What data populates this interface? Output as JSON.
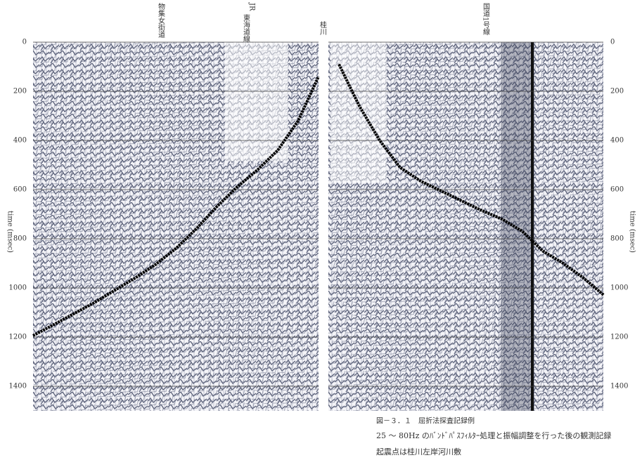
{
  "chart_data": {
    "type": "line",
    "caption": "図－３．１　屈折法探査記録例",
    "notes": [
      "25 ～ 80Hz のﾊﾞﾝﾄﾞﾊﾟｽﾌｨﾙﾀｰ処理と振幅調整を行った後の観測記録",
      "起震点は桂川左岸河川敷"
    ],
    "annotations": [
      "物集女街道",
      "JR",
      "東海道線",
      "桂川",
      "国道1号線"
    ],
    "y_label": "time (msec)",
    "categories": [
      null,
      null,
      null,
      null,
      null,
      null,
      null,
      null,
      null,
      null,
      null,
      null,
      null,
      null,
      null,
      null,
      null,
      null,
      null,
      null,
      null,
      null,
      null,
      null,
      null,
      null,
      null,
      null,
      null
    ],
    "series": [
      {
        "color": "#000000",
        "values": [
          1194,
          1150,
          1105,
          1060,
          1010,
          960,
          905,
          840,
          760,
          670,
          590,
          520,
          440,
          320,
          140,
          null,
          null,
          null,
          null,
          null,
          null,
          null,
          null,
          null,
          null,
          null,
          null,
          null,
          null
        ]
      },
      {
        "color": "#000000",
        "values": [
          null,
          null,
          null,
          null,
          null,
          null,
          null,
          null,
          null,
          null,
          null,
          null,
          null,
          null,
          null,
          90,
          260,
          400,
          510,
          565,
          605,
          645,
          685,
          720,
          770,
          850,
          900,
          960,
          1030
        ]
      }
    ],
    "ylim": [
      0,
      1500
    ],
    "yticks": [
      0,
      200,
      400,
      600,
      800,
      1000,
      1200,
      1400
    ],
    "y_inverted": true,
    "grid": true
  }
}
